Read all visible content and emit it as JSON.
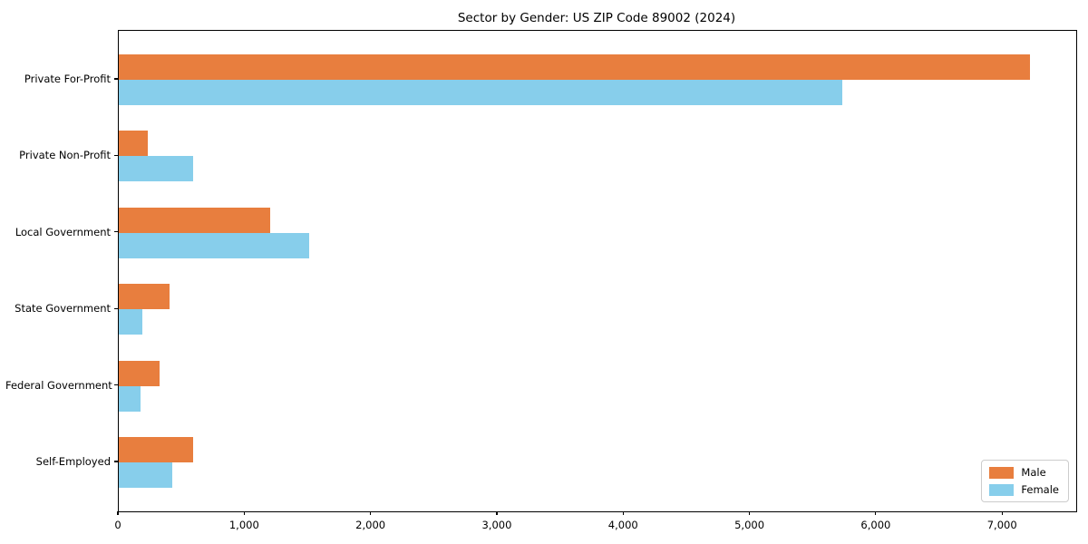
{
  "title": "Sector by Gender: US ZIP Code 89002 (2024)",
  "colors": {
    "male": "#e87e3e",
    "female": "#87ceeb",
    "axis": "#000000",
    "legend_border": "#cccccc",
    "background": "#ffffff"
  },
  "legend": {
    "position": "lower right",
    "entries": [
      {
        "label": "Male",
        "color": "#e87e3e"
      },
      {
        "label": "Female",
        "color": "#87ceeb"
      }
    ]
  },
  "chart_data": {
    "type": "bar",
    "orientation": "horizontal",
    "title": "Sector by Gender: US ZIP Code 89002 (2024)",
    "categories": [
      "Private For-Profit",
      "Private Non-Profit",
      "Local Government",
      "State Government",
      "Federal Government",
      "Self-Employed"
    ],
    "series": [
      {
        "name": "Male",
        "color": "#e87e3e",
        "values": [
          7210,
          230,
          1195,
          400,
          320,
          585
        ]
      },
      {
        "name": "Female",
        "color": "#87ceeb",
        "values": [
          5730,
          590,
          1510,
          185,
          175,
          420
        ]
      }
    ],
    "xlabel": "",
    "ylabel": "",
    "xlim": [
      0,
      7580
    ],
    "xticks": [
      0,
      1000,
      2000,
      3000,
      4000,
      5000,
      6000,
      7000
    ],
    "xtick_labels": [
      "0",
      "1,000",
      "2,000",
      "3,000",
      "4,000",
      "5,000",
      "6,000",
      "7,000"
    ],
    "grid": false,
    "legend_position": "lower right"
  }
}
